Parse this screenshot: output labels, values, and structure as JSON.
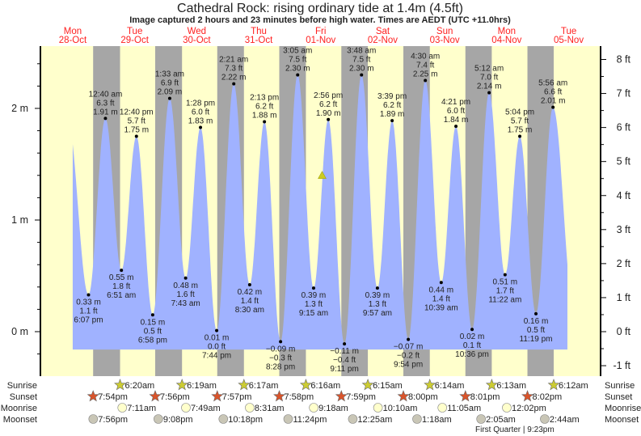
{
  "chart_data": {
    "type": "area",
    "title": "Cathedral Rock: rising  ordinary tide at 1.4m (4.5ft)",
    "subtitle": "Image captured 2 hours and 23 minutes before high water. Times are AEDT (UTC +11.0hrs)",
    "days": [
      {
        "dow": "Mon",
        "date": "28-Oct"
      },
      {
        "dow": "Tue",
        "date": "29-Oct"
      },
      {
        "dow": "Wed",
        "date": "30-Oct"
      },
      {
        "dow": "Thu",
        "date": "31-Oct"
      },
      {
        "dow": "Fri",
        "date": "01-Nov"
      },
      {
        "dow": "Sat",
        "date": "02-Nov"
      },
      {
        "dow": "Sun",
        "date": "03-Nov"
      },
      {
        "dow": "Mon",
        "date": "04-Nov"
      },
      {
        "dow": "Tue",
        "date": "05-Nov"
      }
    ],
    "y_left": {
      "unit": "m",
      "range": [
        -0.3,
        2.6
      ],
      "ticks": [
        "0 m",
        "1 m",
        "2 m"
      ],
      "tick_values": [
        0,
        1,
        2
      ]
    },
    "y_right": {
      "unit": "ft",
      "ticks": [
        "-1 ft",
        "0 ft",
        "1 ft",
        "2 ft",
        "3 ft",
        "4 ft",
        "5 ft",
        "6 ft",
        "7 ft",
        "8 ft"
      ],
      "tick_values": [
        -1,
        0,
        1,
        2,
        3,
        4,
        5,
        6,
        7,
        8
      ]
    },
    "series_start": {
      "date": "28-Oct",
      "time": "12:00pm",
      "m": 1.68
    },
    "series_end": {
      "date": "05-Nov",
      "time": "11:30am",
      "m": 0.6
    },
    "extremes": [
      {
        "type": "low",
        "date": "28-Oct",
        "time": "6:07 pm",
        "m": "0.33 m",
        "ft": "1.1 ft",
        "value": 0.33
      },
      {
        "type": "high",
        "date": "29-Oct",
        "time": "12:40 am",
        "m": "1.91 m",
        "ft": "6.3 ft",
        "value": 1.91
      },
      {
        "type": "low",
        "date": "29-Oct",
        "time": "6:51 am",
        "m": "0.55 m",
        "ft": "1.8 ft",
        "value": 0.55
      },
      {
        "type": "high",
        "date": "29-Oct",
        "time": "12:40 pm",
        "m": "1.75 m",
        "ft": "5.7 ft",
        "value": 1.75
      },
      {
        "type": "low",
        "date": "29-Oct",
        "time": "6:58 pm",
        "m": "0.15 m",
        "ft": "0.5 ft",
        "value": 0.15
      },
      {
        "type": "high",
        "date": "30-Oct",
        "time": "1:33 am",
        "m": "2.09 m",
        "ft": "6.9 ft",
        "value": 2.09
      },
      {
        "type": "low",
        "date": "30-Oct",
        "time": "7:43 am",
        "m": "0.48 m",
        "ft": "1.6 ft",
        "value": 0.48
      },
      {
        "type": "high",
        "date": "30-Oct",
        "time": "1:28 pm",
        "m": "1.83 m",
        "ft": "6.0 ft",
        "value": 1.83
      },
      {
        "type": "low",
        "date": "30-Oct",
        "time": "7:44 pm",
        "m": "0.01 m",
        "ft": "0.0 ft",
        "value": 0.01
      },
      {
        "type": "high",
        "date": "31-Oct",
        "time": "2:21 am",
        "m": "2.22 m",
        "ft": "7.3 ft",
        "value": 2.22
      },
      {
        "type": "low",
        "date": "31-Oct",
        "time": "8:30 am",
        "m": "0.42 m",
        "ft": "1.4 ft",
        "value": 0.42
      },
      {
        "type": "high",
        "date": "31-Oct",
        "time": "2:13 pm",
        "m": "1.88 m",
        "ft": "6.2 ft",
        "value": 1.88
      },
      {
        "type": "low",
        "date": "31-Oct",
        "time": "8:28 pm",
        "m": "−0.09 m",
        "ft": "−0.3 ft",
        "value": -0.09
      },
      {
        "type": "high",
        "date": "01-Nov",
        "time": "3:05 am",
        "m": "2.30 m",
        "ft": "7.5 ft",
        "value": 2.3
      },
      {
        "type": "low",
        "date": "01-Nov",
        "time": "9:15 am",
        "m": "0.39 m",
        "ft": "1.3 ft",
        "value": 0.39
      },
      {
        "type": "high",
        "date": "01-Nov",
        "time": "2:56 pm",
        "m": "1.90 m",
        "ft": "6.2 ft",
        "value": 1.9
      },
      {
        "type": "low",
        "date": "01-Nov",
        "time": "9:11 pm",
        "m": "−0.11 m",
        "ft": "−0.4 ft",
        "value": -0.11
      },
      {
        "type": "high",
        "date": "02-Nov",
        "time": "3:48 am",
        "m": "2.30 m",
        "ft": "7.5 ft",
        "value": 2.3
      },
      {
        "type": "low",
        "date": "02-Nov",
        "time": "9:57 am",
        "m": "0.39 m",
        "ft": "1.3 ft",
        "value": 0.39
      },
      {
        "type": "high",
        "date": "02-Nov",
        "time": "3:39 pm",
        "m": "1.89 m",
        "ft": "6.2 ft",
        "value": 1.89
      },
      {
        "type": "low",
        "date": "02-Nov",
        "time": "9:54 pm",
        "m": "−0.07 m",
        "ft": "−0.2 ft",
        "value": -0.07
      },
      {
        "type": "high",
        "date": "03-Nov",
        "time": "4:30 am",
        "m": "2.25 m",
        "ft": "7.4 ft",
        "value": 2.25
      },
      {
        "type": "low",
        "date": "03-Nov",
        "time": "10:39 am",
        "m": "0.44 m",
        "ft": "1.4 ft",
        "value": 0.44
      },
      {
        "type": "high",
        "date": "03-Nov",
        "time": "4:21 pm",
        "m": "1.84 m",
        "ft": "6.0 ft",
        "value": 1.84
      },
      {
        "type": "low",
        "date": "03-Nov",
        "time": "10:36 pm",
        "m": "0.02 m",
        "ft": "0.1 ft",
        "value": 0.02
      },
      {
        "type": "high",
        "date": "04-Nov",
        "time": "5:12 am",
        "m": "2.14 m",
        "ft": "7.0 ft",
        "value": 2.14
      },
      {
        "type": "low",
        "date": "04-Nov",
        "time": "11:22 am",
        "m": "0.51 m",
        "ft": "1.7 ft",
        "value": 0.51
      },
      {
        "type": "high",
        "date": "04-Nov",
        "time": "5:04 pm",
        "m": "1.75 m",
        "ft": "5.7 ft",
        "value": 1.75
      },
      {
        "type": "low",
        "date": "04-Nov",
        "time": "11:19 pm",
        "m": "0.16 m",
        "ft": "0.5 ft",
        "value": 0.16
      },
      {
        "type": "high",
        "date": "05-Nov",
        "time": "5:56 am",
        "m": "2.01 m",
        "ft": "6.6 ft",
        "value": 2.01
      }
    ],
    "current": {
      "date": "01-Nov",
      "time": "12:33pm",
      "m": 1.4
    },
    "rows": {
      "labels": {
        "sunrise": "Sunrise",
        "sunset": "Sunset",
        "moonrise": "Moonrise",
        "moonset": "Moonset"
      },
      "sunrise": [
        {
          "date": "29-Oct",
          "time": "6:20am"
        },
        {
          "date": "30-Oct",
          "time": "6:19am"
        },
        {
          "date": "31-Oct",
          "time": "6:17am"
        },
        {
          "date": "01-Nov",
          "time": "6:16am"
        },
        {
          "date": "02-Nov",
          "time": "6:15am"
        },
        {
          "date": "03-Nov",
          "time": "6:14am"
        },
        {
          "date": "04-Nov",
          "time": "6:13am"
        },
        {
          "date": "05-Nov",
          "time": "6:12am"
        }
      ],
      "sunset": [
        {
          "date": "28-Oct",
          "time": "7:54pm"
        },
        {
          "date": "29-Oct",
          "time": "7:56pm"
        },
        {
          "date": "30-Oct",
          "time": "7:57pm"
        },
        {
          "date": "31-Oct",
          "time": "7:58pm"
        },
        {
          "date": "01-Nov",
          "time": "7:59pm"
        },
        {
          "date": "02-Nov",
          "time": "8:00pm"
        },
        {
          "date": "03-Nov",
          "time": "8:01pm"
        },
        {
          "date": "04-Nov",
          "time": "8:02pm"
        }
      ],
      "moonrise": [
        {
          "date": "29-Oct",
          "time": "7:11am"
        },
        {
          "date": "30-Oct",
          "time": "7:49am"
        },
        {
          "date": "31-Oct",
          "time": "8:31am"
        },
        {
          "date": "01-Nov",
          "time": "9:18am"
        },
        {
          "date": "02-Nov",
          "time": "10:10am"
        },
        {
          "date": "03-Nov",
          "time": "11:05am"
        },
        {
          "date": "04-Nov",
          "time": "12:02pm"
        }
      ],
      "moonset": [
        {
          "date": "28-Oct",
          "time": "7:56pm"
        },
        {
          "date": "29-Oct",
          "time": "9:08pm"
        },
        {
          "date": "30-Oct",
          "time": "10:18pm"
        },
        {
          "date": "31-Oct",
          "time": "11:24pm"
        },
        {
          "date": "02-Nov",
          "time": "12:25am"
        },
        {
          "date": "03-Nov",
          "time": "1:18am"
        },
        {
          "date": "04-Nov",
          "time": "2:05am"
        },
        {
          "date": "05-Nov",
          "time": "2:44am"
        }
      ]
    },
    "moon_phase": {
      "text": "First Quarter | 9:23pm",
      "date": "04-Nov",
      "time": "9:23pm"
    },
    "colors": {
      "water": "#a0b2ff",
      "day": "#ffffcc",
      "night": "#a6a6a6",
      "day_label": "#ff2020",
      "sunrise_icon": "#cccc33",
      "sunset_icon": "#d9542b",
      "moonrise_icon": "#ffffcc",
      "moonset_icon": "#c9c6b6",
      "current_marker": "#cccc22"
    }
  }
}
